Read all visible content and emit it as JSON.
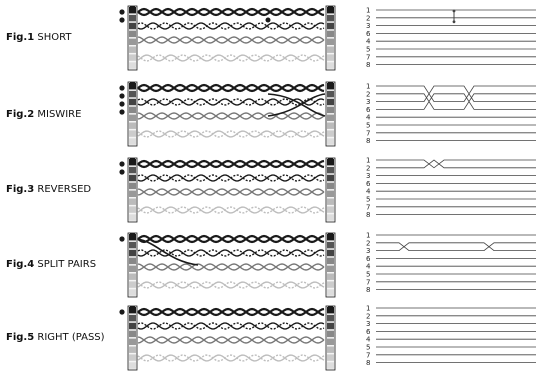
{
  "figures": [
    {
      "prefix": "Fig.1",
      "name": "SHORT",
      "pins": [
        "1",
        "2",
        "3",
        "6",
        "4",
        "5",
        "7",
        "8"
      ]
    },
    {
      "prefix": "Fig.2",
      "name": "MISWIRE",
      "pins": [
        "1",
        "2",
        "3",
        "6",
        "4",
        "5",
        "7",
        "8"
      ]
    },
    {
      "prefix": "Fig.3",
      "name": "REVERSED",
      "pins": [
        "1",
        "2",
        "3",
        "6",
        "4",
        "5",
        "7",
        "8"
      ]
    },
    {
      "prefix": "Fig.4",
      "name": "SPLIT PAIRS",
      "pins": [
        "1",
        "2",
        "3",
        "6",
        "4",
        "5",
        "7",
        "8"
      ]
    },
    {
      "prefix": "Fig.5",
      "name": "RIGHT (PASS)",
      "pins": [
        "1",
        "2",
        "3",
        "6",
        "4",
        "5",
        "7",
        "8"
      ]
    }
  ],
  "colors": {
    "wire_dark": "#1a1a1a",
    "wire_mid": "#777777",
    "wire_light": "#bdbdbd",
    "connector": "#1a1a1a",
    "map_line": "#444444"
  }
}
